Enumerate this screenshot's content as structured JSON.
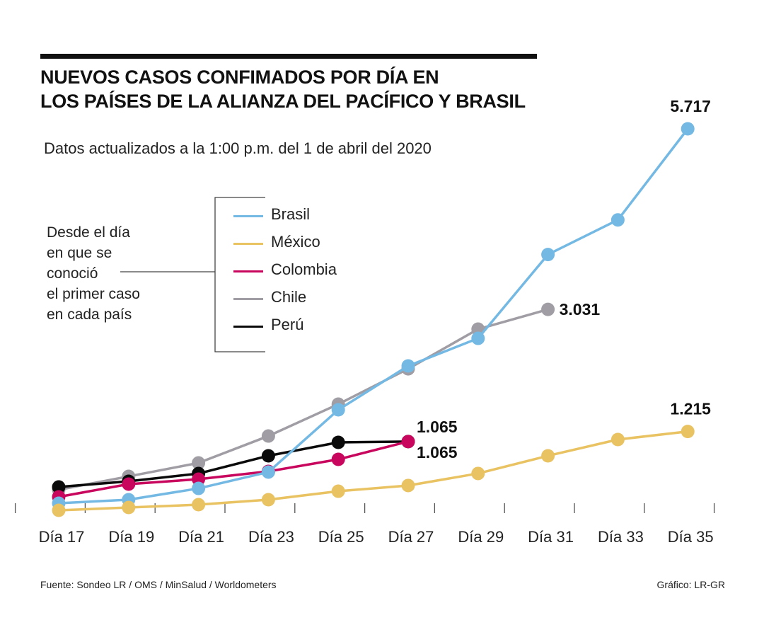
{
  "header": {
    "title_line1": "NUEVOS CASOS CONFIMADOS POR DÍA EN",
    "title_line2": "LOS PAÍSES DE LA ALIANZA DEL PACÍFICO Y BRASIL",
    "subtitle": "Datos actualizados a la 1:00 p.m. del 1 de abril del 2020"
  },
  "note": {
    "lines": [
      "Desde el día",
      "en que se",
      "conoció",
      "el primer caso",
      "en cada país"
    ]
  },
  "footer": {
    "source": "Fuente: Sondeo LR / OMS / MinSalud / Worldometers",
    "credit": "Gráfico: LR-GR"
  },
  "chart_data": {
    "type": "line",
    "title": "NUEVOS CASOS CONFIMADOS POR DÍA EN LOS PAÍSES DE LA ALIANZA DEL PACÍFICO Y BRASIL",
    "subtitle": "Datos actualizados a la 1:00 p.m. del 1 de abril del 2020",
    "xlabel": "",
    "ylabel": "",
    "categories": [
      "Día 17",
      "Día 19",
      "Día 21",
      "Día 23",
      "Día 25",
      "Día 27",
      "Día 29",
      "Día 31",
      "Día 33",
      "Día 35"
    ],
    "ylim": [
      0,
      5717
    ],
    "grid": false,
    "legend_position": "top-center",
    "series": [
      {
        "name": "Brasil",
        "color": "#74b9e4",
        "values": [
          147,
          200,
          368,
          611,
          1537,
          2190,
          2600,
          3847,
          4362,
          5717
        ],
        "end_label": "5.717",
        "end_label_position": "above"
      },
      {
        "name": "México",
        "color": "#e9c262",
        "values": [
          42,
          84,
          126,
          200,
          326,
          411,
          590,
          853,
          1095,
          1215
        ],
        "end_label": "1.215",
        "end_label_position": "above"
      },
      {
        "name": "Colombia",
        "color": "#c8065e",
        "values": [
          242,
          432,
          505,
          621,
          800,
          1065
        ],
        "end_label": "1.065",
        "end_label_position": "below-right"
      },
      {
        "name": "Chile",
        "color": "#a09da4",
        "values": [
          347,
          547,
          747,
          1147,
          1621,
          2147,
          2737,
          3031
        ],
        "end_label": "3.031",
        "end_label_position": "right"
      },
      {
        "name": "Perú",
        "color": "#0a0a0a",
        "values": [
          389,
          474,
          589,
          853,
          1053,
          1065
        ],
        "end_label": "1.065",
        "end_label_position": "above-right"
      }
    ]
  }
}
